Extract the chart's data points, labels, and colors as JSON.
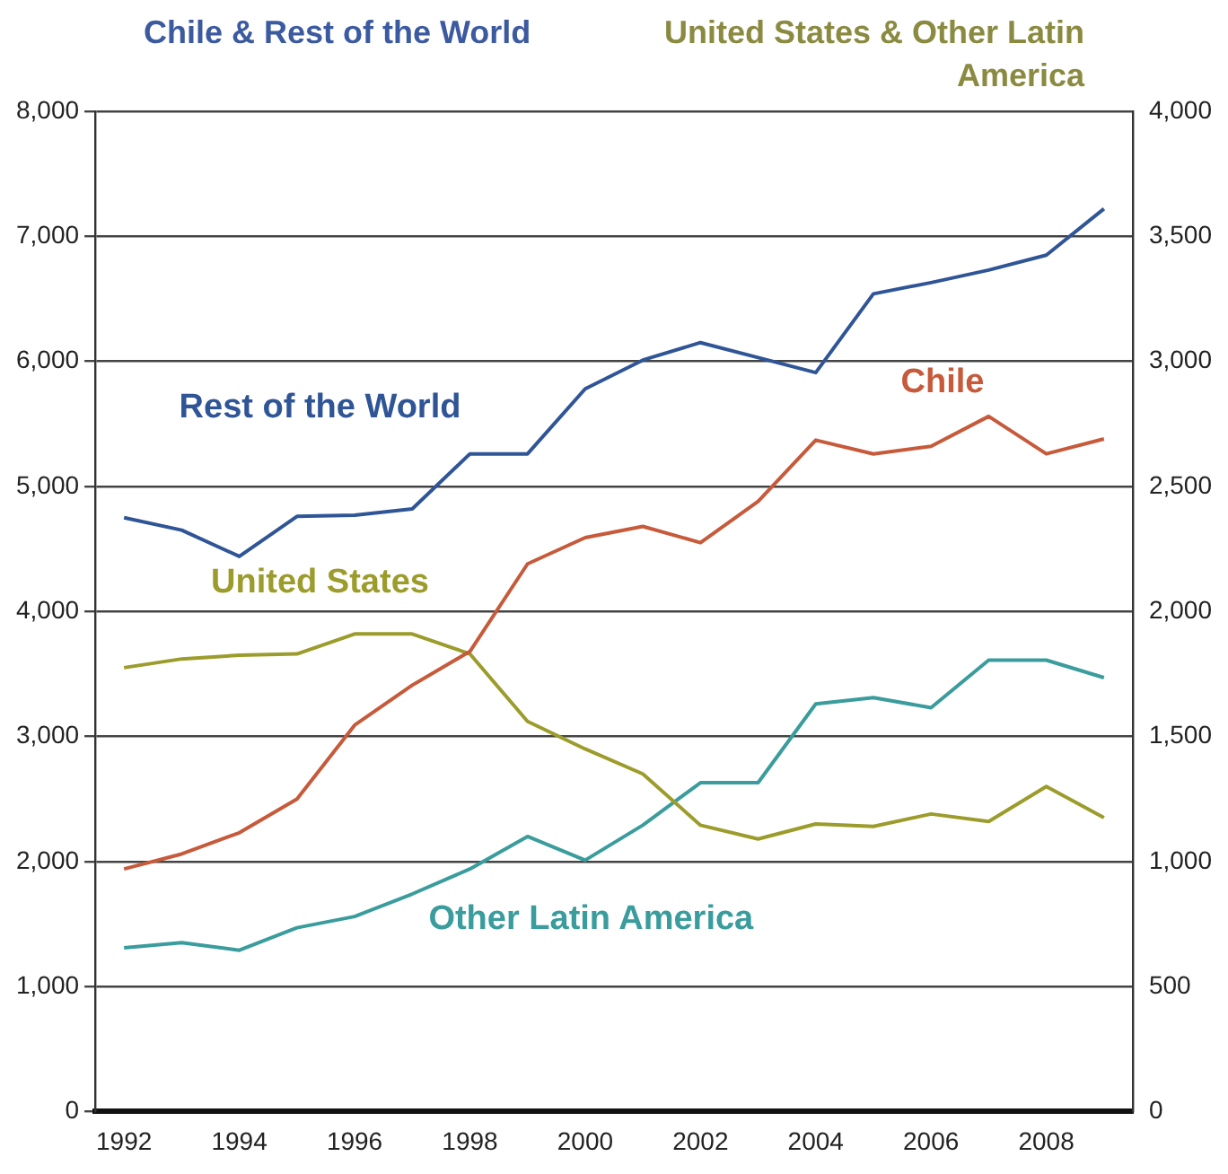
{
  "chart_data": {
    "type": "line",
    "ylabel": "Chile & Rest of the World",
    "y2label": "United States & Other Latin America",
    "categories": [
      "1992",
      null,
      "1994",
      null,
      "1996",
      null,
      "1998",
      null,
      "2000",
      null,
      "2002",
      null,
      "2004",
      null,
      "2006",
      null,
      "2008",
      null
    ],
    "series": [
      {
        "name": "Chile",
        "color": "#c65a3a",
        "values": [
          1940,
          2060,
          2230,
          2500,
          3090,
          3410,
          3680,
          4380,
          4590,
          4680,
          4550,
          4880,
          5370,
          5260,
          5320,
          5560,
          5260,
          5380
        ]
      },
      {
        "name": "Rest of the World",
        "color": "#2f5597",
        "values": [
          4750,
          4650,
          4440,
          4760,
          4770,
          4820,
          5260,
          5260,
          5780,
          6010,
          6150,
          6030,
          5910,
          6540,
          6630,
          6730,
          6850,
          7220
        ]
      },
      {
        "name": "United States",
        "color": "#9c9c2c",
        "axis": "y2",
        "values": [
          1775,
          1810,
          1825,
          1830,
          1910,
          1910,
          1830,
          1560,
          1450,
          1350,
          1145,
          1090,
          1150,
          1140,
          1190,
          1160,
          1300,
          1175
        ]
      },
      {
        "name": "Other Latin America",
        "color": "#3a9c9c",
        "axis": "y2",
        "values": [
          655,
          675,
          645,
          735,
          780,
          870,
          970,
          1100,
          1005,
          1145,
          1315,
          1315,
          1630,
          1655,
          1615,
          1805,
          1805,
          1735
        ]
      }
    ],
    "ylim": [
      0,
      8000
    ],
    "yticks": [
      0,
      {
        "value": 1000,
        "label": "1,000"
      },
      {
        "value": 2000,
        "label": "2,000"
      },
      {
        "value": 3000,
        "label": "3,000"
      },
      {
        "value": 4000,
        "label": "4,000"
      },
      {
        "value": 5000,
        "label": "5,000"
      },
      {
        "value": 6000,
        "label": "6,000"
      },
      {
        "value": 7000,
        "label": "7,000"
      },
      {
        "value": 8000,
        "label": "8,000"
      }
    ],
    "y2lim": [
      0,
      4000
    ],
    "y2ticks": [
      0,
      500,
      {
        "value": 1000,
        "label": "1,000"
      },
      {
        "value": 1500,
        "label": "1,500"
      },
      {
        "value": 2000,
        "label": "2,000"
      },
      {
        "value": 2500,
        "label": "2,500"
      },
      {
        "value": 3000,
        "label": "3,000"
      },
      {
        "value": 3500,
        "label": "3,500"
      },
      {
        "value": 4000,
        "label": "4,000"
      }
    ],
    "grid": "y",
    "legend": false,
    "marker": "none",
    "line_style": "solid"
  }
}
